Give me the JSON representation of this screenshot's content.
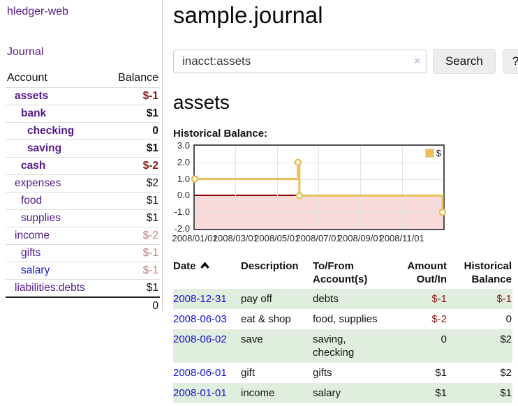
{
  "sidebar": {
    "brand": "hledger-web",
    "nav": {
      "journal_label": "Journal"
    },
    "accounts": {
      "header_account": "Account",
      "header_balance": "Balance",
      "rows": [
        {
          "name": "assets",
          "balance": "$-1",
          "level": 1,
          "bold": true,
          "style": "neg-strong",
          "blue": false
        },
        {
          "name": "bank",
          "balance": "$1",
          "level": 2,
          "bold": true,
          "style": "pos",
          "blue": false
        },
        {
          "name": "checking",
          "balance": "0",
          "level": 3,
          "bold": true,
          "style": "pos",
          "blue": false
        },
        {
          "name": "saving",
          "balance": "$1",
          "level": 3,
          "bold": true,
          "style": "pos",
          "blue": false
        },
        {
          "name": "cash",
          "balance": "$-2",
          "level": 2,
          "bold": true,
          "style": "neg-strong",
          "blue": false
        },
        {
          "name": "expenses",
          "balance": "$2",
          "level": 1,
          "bold": false,
          "style": "pos",
          "blue": false
        },
        {
          "name": "food",
          "balance": "$1",
          "level": 2,
          "bold": false,
          "style": "pos",
          "blue": false
        },
        {
          "name": "supplies",
          "balance": "$1",
          "level": 2,
          "bold": false,
          "style": "pos",
          "blue": false
        },
        {
          "name": "income",
          "balance": "$-2",
          "level": 1,
          "bold": false,
          "style": "neg-faded",
          "blue": false
        },
        {
          "name": "gifts",
          "balance": "$-1",
          "level": 2,
          "bold": false,
          "style": "neg-faded",
          "blue": false
        },
        {
          "name": "salary",
          "balance": "$-1",
          "level": 2,
          "bold": false,
          "style": "neg-faded",
          "blue": true
        },
        {
          "name": "liabilities:debts",
          "balance": "$1",
          "level": 1,
          "bold": false,
          "style": "pos",
          "blue": false
        }
      ],
      "total": "0"
    }
  },
  "main": {
    "title": "sample.journal",
    "search": {
      "value": "inacct:assets",
      "clear_icon": "×",
      "button_label": "Search",
      "help_label": "?"
    },
    "account_heading": "assets",
    "chart_heading": "Historical Balance:",
    "register": {
      "headers": [
        {
          "line1": "Date",
          "line2": "",
          "align": "left",
          "sort": "asc"
        },
        {
          "line1": "Description",
          "line2": "",
          "align": "left"
        },
        {
          "line1": "To/From",
          "line2": "Account(s)",
          "align": "left"
        },
        {
          "line1": "Amount",
          "line2": "Out/In",
          "align": "right"
        },
        {
          "line1": "Historical",
          "line2": "Balance",
          "align": "right"
        }
      ],
      "rows": [
        {
          "date": "2008-12-31",
          "description": "pay off",
          "accounts": "debts",
          "amount": "$-1",
          "balance": "$-1"
        },
        {
          "date": "2008-06-03",
          "description": "eat & shop",
          "accounts": "food, supplies",
          "amount": "$-2",
          "balance": "0"
        },
        {
          "date": "2008-06-02",
          "description": "save",
          "accounts": "saving, checking",
          "amount": "0",
          "balance": "$2"
        },
        {
          "date": "2008-06-01",
          "description": "gift",
          "accounts": "gifts",
          "amount": "$1",
          "balance": "$2"
        },
        {
          "date": "2008-01-01",
          "description": "income",
          "accounts": "salary",
          "amount": "$1",
          "balance": "$1"
        }
      ]
    }
  },
  "chart_data": {
    "type": "line",
    "title": "Historical Balance:",
    "step": true,
    "series": [
      {
        "name": "$",
        "color": "#E6C156",
        "points": [
          [
            "2008-01-01",
            1
          ],
          [
            "2008-06-01",
            2
          ],
          [
            "2008-06-03",
            0
          ],
          [
            "2008-12-31",
            -1
          ]
        ]
      }
    ],
    "ylim": [
      -2,
      3
    ],
    "yticks": [
      3.0,
      2.0,
      1.0,
      0.0,
      -1.0,
      -2.0
    ],
    "ytick_labels": [
      "3.0",
      "2.0",
      "1.0",
      "0.0",
      "-1.0",
      "-2.0"
    ],
    "xticks": [
      "2008/01/01",
      "2008/03/01",
      "2008/05/01",
      "2008/07/01",
      "2008/09/01",
      "2008/11/01"
    ],
    "x_range_days": 366,
    "grid": true,
    "legend_position": "top-right",
    "negative_fill_color": "#f9dada",
    "zero_line_color": "#8b0000"
  }
}
